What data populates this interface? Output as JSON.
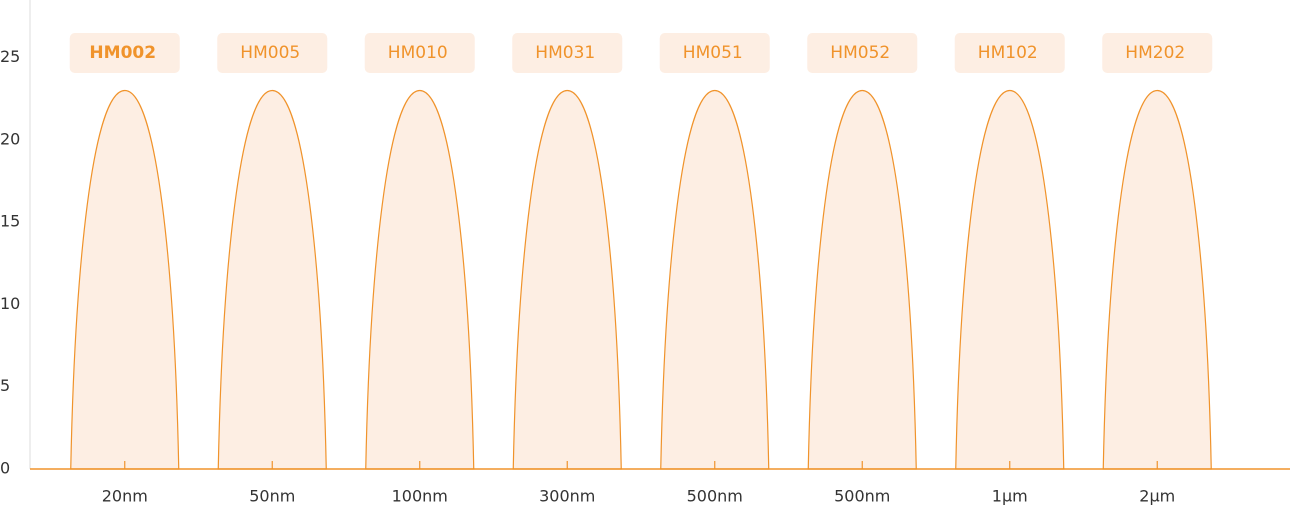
{
  "chart_data": {
    "type": "bell",
    "categories": [
      "20nm",
      "50nm",
      "100nm",
      "300nm",
      "500nm",
      "500nm",
      "1μm",
      "2μm"
    ],
    "labels": [
      "HM002",
      "HM005",
      "HM010",
      "HM031",
      "HM051",
      "HM052",
      "HM102",
      "HM202"
    ],
    "values": [
      23,
      23,
      23,
      23,
      23,
      23,
      23,
      23
    ],
    "color": "#f0932b",
    "fill": "#fdeee3",
    "selected": 0,
    "ylim": [
      0,
      28.5
    ],
    "yticks": [
      0,
      5,
      10,
      15,
      20,
      25
    ]
  }
}
